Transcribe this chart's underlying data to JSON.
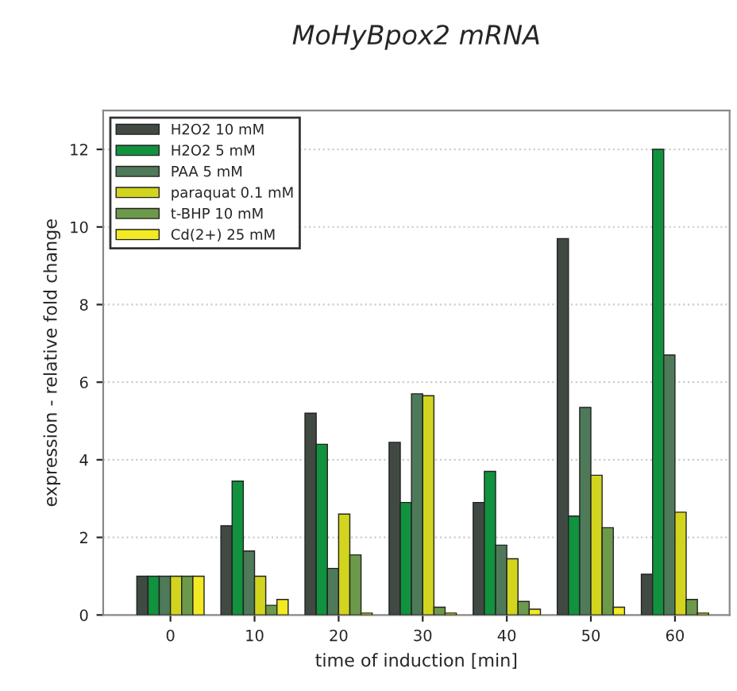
{
  "chart_data": {
    "type": "bar",
    "title": "MoHyBpox2 mRNA",
    "xlabel": "time of induction [min]",
    "ylabel": "expression - relative fold change",
    "categories": [
      "0",
      "10",
      "20",
      "30",
      "40",
      "50",
      "60"
    ],
    "series": [
      {
        "name": "H2O2 10 mM",
        "color": "#404a42",
        "values": [
          1,
          2.3,
          5.2,
          4.45,
          2.9,
          9.7,
          1.05
        ]
      },
      {
        "name": "H2O2 5 mM",
        "color": "#10923e",
        "values": [
          1,
          3.45,
          4.4,
          2.9,
          3.7,
          2.55,
          12.0
        ]
      },
      {
        "name": "PAA 5 mM",
        "color": "#4f7a5a",
        "values": [
          1,
          1.65,
          1.2,
          5.7,
          1.8,
          5.35,
          6.7
        ]
      },
      {
        "name": "paraquat 0.1 mM",
        "color": "#d2d41e",
        "values": [
          1,
          1.0,
          2.6,
          5.65,
          1.45,
          3.6,
          2.65
        ]
      },
      {
        "name": "t-BHP 10 mM",
        "color": "#6c9a4a",
        "values": [
          1,
          0.25,
          1.55,
          0.2,
          0.35,
          2.25,
          0.4
        ]
      },
      {
        "name": "Cd(2+) 25 mM",
        "color": "#f2ea22",
        "values": [
          1,
          0.4,
          0.05,
          0.05,
          0.15,
          0.2,
          0.05
        ]
      }
    ],
    "ylim": [
      0,
      13
    ],
    "yticks": [
      0,
      2,
      4,
      6,
      8,
      10,
      12
    ],
    "grid": "y",
    "legend": "top left"
  }
}
